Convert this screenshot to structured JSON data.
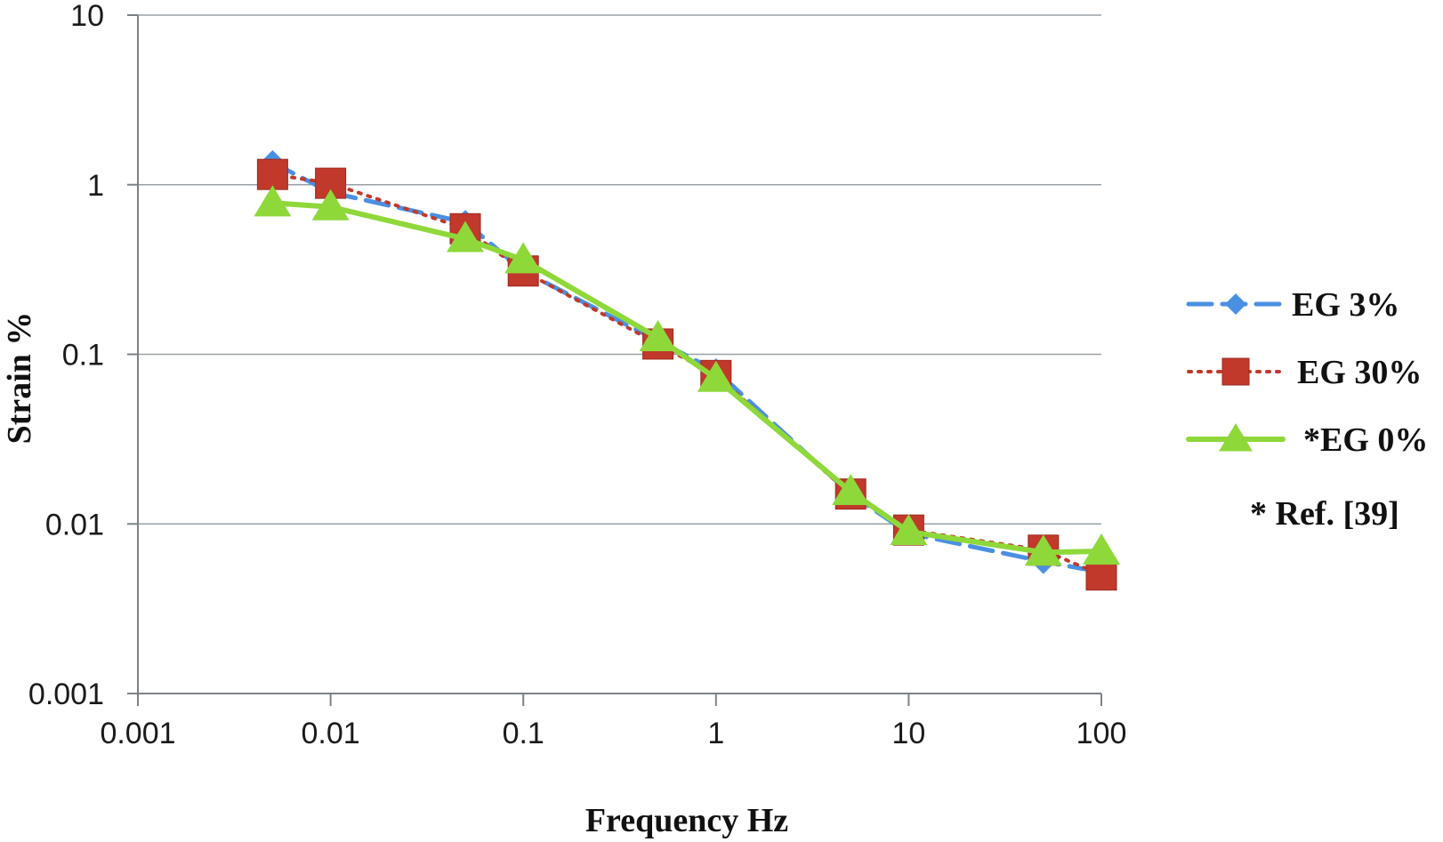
{
  "chart_data": {
    "type": "line",
    "xlabel": "Frequency  Hz",
    "ylabel": "Strain %",
    "x_scale": "log",
    "y_scale": "log",
    "xlim": [
      0.001,
      100
    ],
    "ylim": [
      0.001,
      10
    ],
    "x_ticks": [
      "0.001",
      "0.01",
      "0.1",
      "1",
      "10",
      "100"
    ],
    "y_ticks": [
      "0.001",
      "0.01",
      "0.1",
      "1",
      "10"
    ],
    "grid": "horizontal",
    "legend_position": "right",
    "note": "* Ref. [39]",
    "series": [
      {
        "name": "EG 3%",
        "color": "#4a90e2",
        "line_style": "dashed",
        "marker": "diamond",
        "points": [
          [
            0.005,
            1.35
          ],
          [
            0.01,
            0.9
          ],
          [
            0.05,
            0.6
          ],
          [
            0.1,
            0.31
          ],
          [
            0.5,
            0.12
          ],
          [
            1,
            0.08
          ],
          [
            5,
            0.015
          ],
          [
            10,
            0.0088
          ],
          [
            50,
            0.006
          ],
          [
            100,
            0.0052
          ]
        ]
      },
      {
        "name": "EG 30%",
        "color": "#c0392b",
        "line_style": "dotted",
        "marker": "square",
        "points": [
          [
            0.005,
            1.15
          ],
          [
            0.01,
            1.02
          ],
          [
            0.05,
            0.55
          ],
          [
            0.1,
            0.31
          ],
          [
            0.5,
            0.115
          ],
          [
            1,
            0.075
          ],
          [
            5,
            0.015
          ],
          [
            10,
            0.0092
          ],
          [
            50,
            0.007
          ],
          [
            100,
            0.005
          ]
        ]
      },
      {
        "name": "*EG 0%",
        "color": "#8ed83a",
        "line_style": "solid",
        "marker": "triangle",
        "points": [
          [
            0.005,
            0.78
          ],
          [
            0.01,
            0.74
          ],
          [
            0.05,
            0.48
          ],
          [
            0.1,
            0.36
          ],
          [
            0.5,
            0.125
          ],
          [
            1,
            0.072
          ],
          [
            5,
            0.0155
          ],
          [
            10,
            0.009
          ],
          [
            50,
            0.0068
          ],
          [
            100,
            0.0069
          ]
        ]
      }
    ]
  }
}
